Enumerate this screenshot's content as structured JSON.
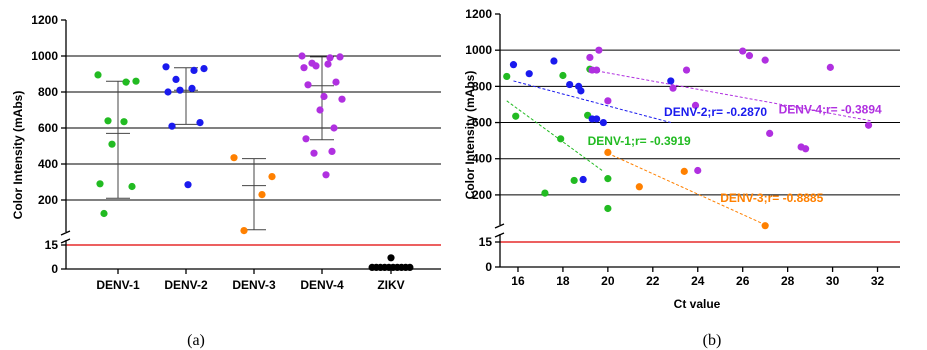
{
  "colors": {
    "DENV-1": "#22bb22",
    "DENV-2": "#1a1aee",
    "DENV-3": "#ff8000",
    "DENV-4": "#b030e0",
    "ZIKV": "#000000",
    "cutoff": "#e00000"
  },
  "chart_data": [
    {
      "type": "scatter",
      "caption": "(a)",
      "ylabel": "Color Intensity (mAbs)",
      "categories": [
        "DENV-1",
        "DENV-2",
        "DENV-3",
        "DENV-4",
        "ZIKV"
      ],
      "y_ticks_upper": [
        200,
        400,
        600,
        800,
        1000,
        1200
      ],
      "y_ticks_lower": [
        0,
        15
      ],
      "ylim_upper": [
        100,
        1200
      ],
      "ylim_lower": [
        0,
        15
      ],
      "cutoff": 15,
      "grid": "horizontal",
      "series": [
        {
          "category": "DENV-1",
          "points": [
            895,
            860,
            855,
            640,
            635,
            510,
            290,
            275,
            125
          ],
          "mean": 570,
          "sd_low": 210,
          "sd_high": 860
        },
        {
          "category": "DENV-2",
          "points": [
            940,
            930,
            920,
            870,
            820,
            810,
            800,
            630,
            610,
            285
          ],
          "mean": 810,
          "sd_low": 620,
          "sd_high": 935
        },
        {
          "category": "DENV-3",
          "points": [
            435,
            330,
            230,
            30
          ],
          "mean": 280,
          "sd_low": 35,
          "sd_high": 430
        },
        {
          "category": "DENV-4",
          "points": [
            1000,
            995,
            990,
            960,
            955,
            945,
            935,
            855,
            840,
            775,
            760,
            700,
            600,
            540,
            470,
            460,
            340
          ],
          "mean": 835,
          "sd_low": 535,
          "sd_high": 995
        },
        {
          "category": "ZIKV",
          "points": [
            7,
            1,
            1,
            1,
            1,
            1,
            1,
            1,
            1,
            1,
            1
          ],
          "mean": 1,
          "sd_low": 0,
          "sd_high": 2
        }
      ]
    },
    {
      "type": "scatter",
      "caption": "(b)",
      "xlabel": "Ct value",
      "ylabel": "Color Intensity (mAbs)",
      "x_ticks": [
        16,
        18,
        20,
        22,
        24,
        26,
        28,
        30,
        32
      ],
      "xlim": [
        15.2,
        33
      ],
      "y_ticks_upper": [
        200,
        400,
        600,
        800,
        1000,
        1200
      ],
      "y_ticks_lower": [
        0,
        15
      ],
      "ylim_upper": [
        100,
        1200
      ],
      "ylim_lower": [
        0,
        15
      ],
      "cutoff": 15,
      "grid": "horizontal",
      "series": [
        {
          "name": "DENV-1",
          "label": "DENV-1;r= -0.3919",
          "points": [
            [
              15.5,
              855
            ],
            [
              15.9,
              635
            ],
            [
              17.2,
              210
            ],
            [
              17.9,
              510
            ],
            [
              18.0,
              860
            ],
            [
              18.5,
              280
            ],
            [
              19.2,
              895
            ],
            [
              19.1,
              640
            ],
            [
              20.0,
              290
            ],
            [
              20.0,
              125
            ]
          ],
          "trend": [
            [
              15.5,
              720
            ],
            [
              19.8,
              330
            ]
          ]
        },
        {
          "name": "DENV-2",
          "label": "DENV-2;r= -0.2870",
          "points": [
            [
              15.8,
              920
            ],
            [
              16.5,
              870
            ],
            [
              17.6,
              940
            ],
            [
              18.3,
              810
            ],
            [
              18.7,
              800
            ],
            [
              18.8,
              775
            ],
            [
              19.3,
              620
            ],
            [
              19.5,
              620
            ],
            [
              19.8,
              600
            ],
            [
              22.8,
              830
            ],
            [
              18.9,
              285
            ]
          ],
          "trend": [
            [
              15.8,
              830
            ],
            [
              22.8,
              600
            ]
          ]
        },
        {
          "name": "DENV-3",
          "label": "DENV-3;r= -0.8885",
          "points": [
            [
              20.0,
              435
            ],
            [
              21.4,
              245
            ],
            [
              23.4,
              330
            ],
            [
              27.0,
              30
            ]
          ],
          "trend": [
            [
              20.0,
              430
            ],
            [
              27.0,
              35
            ]
          ]
        },
        {
          "name": "DENV-4",
          "label": "DENV-4;r= -0.3894",
          "points": [
            [
              19.2,
              960
            ],
            [
              19.6,
              1000
            ],
            [
              19.5,
              890
            ],
            [
              19.3,
              890
            ],
            [
              20.0,
              720
            ],
            [
              22.9,
              790
            ],
            [
              23.5,
              890
            ],
            [
              23.9,
              695
            ],
            [
              24.0,
              335
            ],
            [
              26.0,
              995
            ],
            [
              26.3,
              970
            ],
            [
              27.0,
              945
            ],
            [
              27.2,
              540
            ],
            [
              28.6,
              465
            ],
            [
              28.8,
              455
            ],
            [
              29.9,
              905
            ],
            [
              31.6,
              585
            ]
          ],
          "trend": [
            [
              19.3,
              890
            ],
            [
              31.7,
              610
            ]
          ]
        }
      ]
    }
  ]
}
